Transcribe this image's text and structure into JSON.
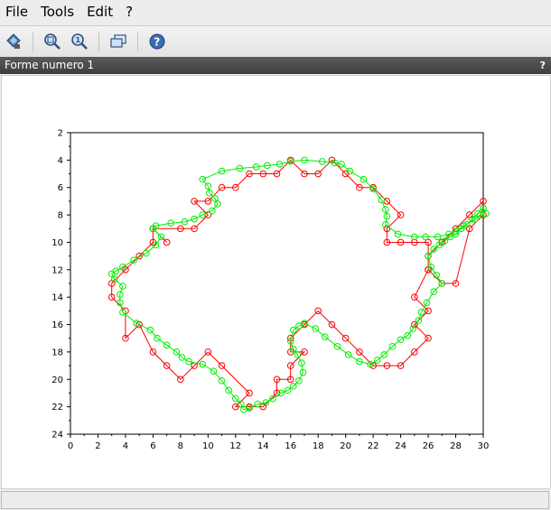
{
  "menu": {
    "file": "File",
    "tools": "Tools",
    "edit": "Edit",
    "help": "?"
  },
  "toolbar": {
    "icons": [
      "datatip-icon",
      "zoom-in-icon",
      "zoom-reset-icon",
      "rotate-icon",
      "help-icon"
    ]
  },
  "figure": {
    "title": "Forme numero 1",
    "help": "?"
  },
  "chart_data": {
    "type": "line",
    "xlim": [
      0,
      30
    ],
    "ylim": [
      24,
      2
    ],
    "y_inverted": true,
    "grid": false,
    "x_ticks": [
      0,
      2,
      4,
      6,
      8,
      10,
      12,
      14,
      16,
      18,
      20,
      22,
      24,
      26,
      28,
      30
    ],
    "y_ticks": [
      2,
      4,
      6,
      8,
      10,
      12,
      14,
      16,
      18,
      20,
      22,
      24
    ],
    "series": [
      {
        "color": "#ff0000",
        "marker": "circle",
        "x": [
          30,
          29,
          28,
          27,
          26,
          26,
          25,
          26,
          25,
          26,
          25,
          24,
          23,
          22,
          21,
          20,
          19,
          18,
          17,
          16,
          16,
          17,
          16,
          16,
          15,
          15,
          14,
          13,
          12,
          13,
          11,
          10,
          9,
          8,
          7,
          6,
          5,
          4,
          4,
          3,
          3,
          4,
          5,
          6,
          6,
          7,
          6,
          8,
          9,
          10,
          9,
          10,
          11,
          12,
          13,
          14,
          15,
          16,
          17,
          18,
          19,
          20,
          21,
          22,
          23,
          24,
          23,
          23,
          24,
          25,
          26,
          26,
          27,
          28,
          29,
          30
        ],
        "y": [
          7,
          8,
          9,
          10,
          11,
          12,
          14,
          15,
          16,
          17,
          18,
          19,
          19,
          19,
          18,
          17,
          16,
          15,
          16,
          17,
          18,
          18,
          19,
          20,
          20,
          21,
          22,
          22,
          22,
          21,
          19,
          18,
          19,
          20,
          19,
          18,
          16,
          17,
          15,
          14,
          13,
          12,
          11,
          10,
          9,
          10,
          9,
          9,
          9,
          8,
          7,
          7,
          6,
          6,
          5,
          5,
          5,
          4,
          5,
          5,
          4,
          5,
          6,
          6,
          7,
          8,
          9,
          10,
          10,
          10,
          10,
          12,
          13,
          13,
          9,
          8
        ]
      },
      {
        "color": "#00ee00",
        "marker": "circle",
        "x": [
          30,
          29.6,
          29.2,
          28.8,
          28.4,
          28,
          27.6,
          27.2,
          26.8,
          26.4,
          26,
          26.2,
          26.6,
          27,
          26.4,
          25.9,
          25.5,
          25.3,
          24.9,
          24.5,
          24,
          23.4,
          22.8,
          22.3,
          21.8,
          21,
          20.2,
          19.4,
          18.5,
          17.8,
          17,
          16.6,
          16.2,
          16,
          16.2,
          16.5,
          16.8,
          16.9,
          16.6,
          16.2,
          15.8,
          15.3,
          14.7,
          14.2,
          13.6,
          13,
          12.6,
          12.4,
          12,
          11.5,
          11,
          10.4,
          9.6,
          8.6,
          8.1,
          7.7,
          7,
          6.3,
          5.8,
          4.8,
          3.8,
          3.6,
          3.6,
          3.8,
          3.2,
          3,
          3.3,
          3.8,
          4.6,
          5.5,
          6.2,
          6.6,
          6,
          6.2,
          7.3,
          8.3,
          9,
          9.6,
          10.3,
          10.7,
          10.5,
          10.1,
          10,
          9.6,
          11,
          12.3,
          13.5,
          14.3,
          15.2,
          16,
          17,
          18.3,
          19.2,
          19.7,
          20.3,
          21.3,
          22,
          22.6,
          22.9,
          23,
          22.9,
          23.8,
          25,
          25.8,
          26.7,
          27.5,
          28,
          28.6,
          29.4,
          29.8,
          30.2,
          30
        ],
        "y": [
          7.5,
          7.9,
          8.3,
          8.7,
          9,
          9.4,
          9.6,
          9.9,
          10.2,
          10.5,
          11,
          11.8,
          12.4,
          13,
          13.6,
          14.4,
          15.1,
          15.7,
          16.3,
          16.8,
          17.1,
          17.6,
          18.2,
          18.6,
          18.9,
          18.7,
          18.2,
          17.6,
          16.9,
          16.3,
          15.9,
          16.1,
          16.4,
          17.2,
          17.8,
          18.2,
          18.8,
          19.5,
          20.1,
          20.5,
          20.8,
          21,
          21.4,
          21.7,
          21.8,
          22.1,
          22.2,
          21.8,
          21.4,
          20.8,
          20.1,
          19.4,
          18.9,
          18.7,
          18.4,
          18,
          17.5,
          17,
          16.4,
          15.9,
          15.1,
          14.4,
          13.8,
          13.2,
          12.7,
          12.3,
          12.1,
          11.8,
          11.3,
          10.8,
          10.2,
          9.6,
          9,
          8.8,
          8.6,
          8.5,
          8.3,
          8,
          7.7,
          7.2,
          6.8,
          6.4,
          5.9,
          5.4,
          4.8,
          4.6,
          4.5,
          4.4,
          4.3,
          4.1,
          4,
          4.1,
          4.2,
          4.3,
          4.8,
          5.4,
          6.1,
          6.9,
          7.6,
          8.1,
          8.7,
          9.4,
          9.6,
          9.6,
          9.6,
          9.4,
          9.2,
          8.8,
          8.3,
          8,
          7.9,
          7.5
        ]
      }
    ]
  }
}
